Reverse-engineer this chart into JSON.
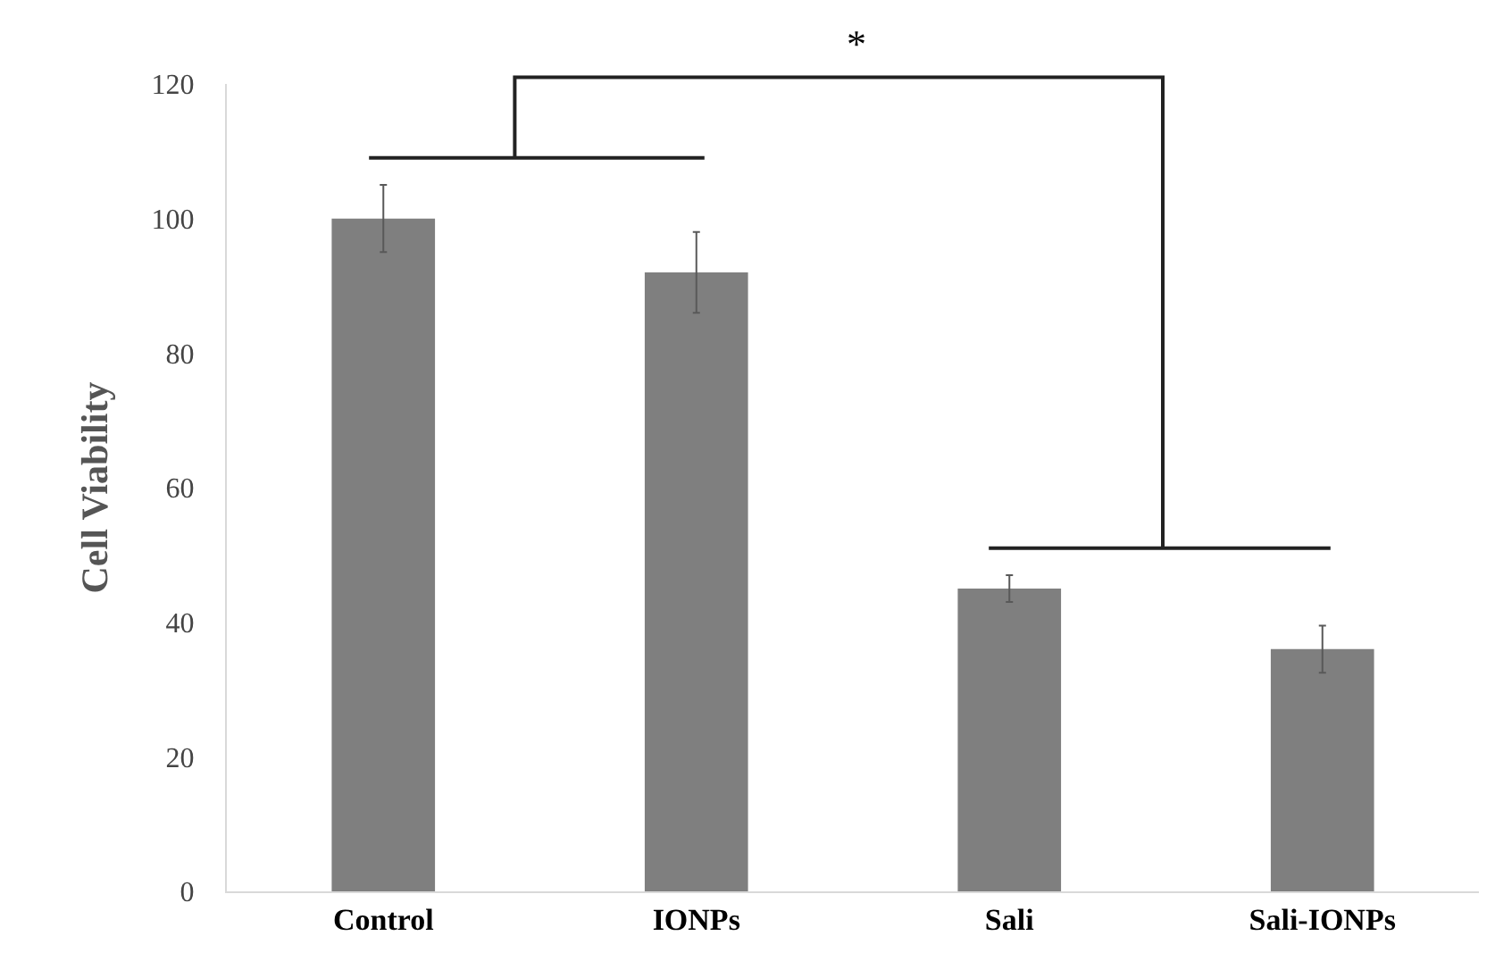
{
  "chart_data": {
    "type": "bar",
    "ylabel": "Cell Viability",
    "categories": [
      "Control",
      "IONPs",
      "Sali",
      "Sali-IONPs"
    ],
    "values": [
      100,
      92,
      45,
      36
    ],
    "errors": [
      5,
      6,
      2,
      3.5
    ],
    "color": "#7f7f7f",
    "ylim": [
      0,
      120
    ],
    "yticks": [
      0,
      20,
      40,
      60,
      80,
      100,
      120
    ],
    "grid": false,
    "legend": false,
    "annotations": [
      "*"
    ]
  }
}
